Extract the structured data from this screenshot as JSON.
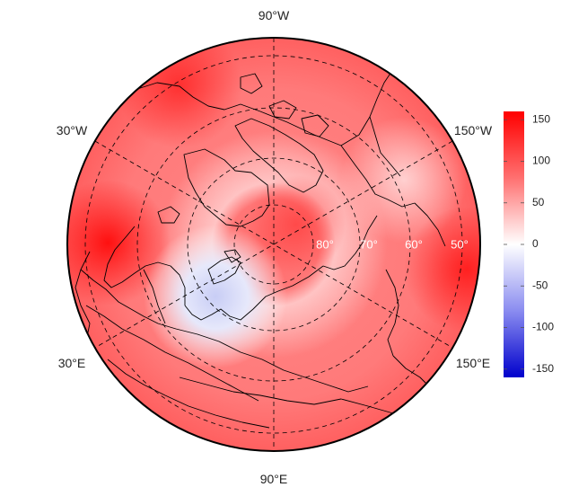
{
  "map": {
    "projection": "north-polar-stereographic",
    "longitude_labels": {
      "top": "90°W",
      "upper_left": "30°W",
      "upper_right": "150°W",
      "lower_left": "30°E",
      "lower_right": "150°E",
      "bottom": "90°E"
    },
    "latitude_labels": [
      "80°",
      "70°",
      "60°",
      "50°"
    ],
    "graticule_style": "dashed",
    "land_outline_color": "#000000"
  },
  "colorbar": {
    "ticks": [
      "150",
      "100",
      "50",
      "0",
      "-50",
      "-100",
      "-150"
    ],
    "tick_values": [
      150,
      100,
      50,
      0,
      -50,
      -100,
      -150
    ],
    "range": [
      -160,
      160
    ],
    "color_low": "#0000cc",
    "color_mid": "#ffffff",
    "color_high": "#ff0000"
  }
}
